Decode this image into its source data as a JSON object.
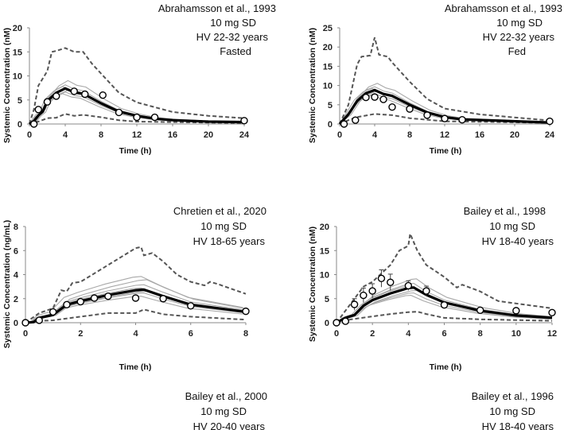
{
  "chart_data": [
    {
      "type": "line",
      "title_lines": [
        "Abrahamsson et al., 1993",
        "10 mg SD",
        "HV 22-32 years",
        "Fasted"
      ],
      "xlabel": "Time (h)",
      "ylabel": "Systemic Concentration (nM)",
      "xlim": [
        0,
        24
      ],
      "ylim": [
        0,
        20
      ],
      "xticks": [
        "0",
        "4",
        "8",
        "12",
        "16",
        "20",
        "24"
      ],
      "yticks": [
        "0",
        "5",
        "10",
        "15",
        "20"
      ],
      "observed": [
        [
          0.5,
          0
        ],
        [
          1,
          3
        ],
        [
          2,
          4.6
        ],
        [
          3,
          5.8
        ],
        [
          5,
          6.8
        ],
        [
          6.2,
          6.2
        ],
        [
          8.2,
          6
        ],
        [
          10,
          2.4
        ],
        [
          12,
          1.4
        ],
        [
          14,
          1.4
        ],
        [
          24,
          0.7
        ]
      ],
      "mean": [
        [
          0,
          0
        ],
        [
          0.5,
          0.6
        ],
        [
          1,
          1.8
        ],
        [
          1.5,
          2.6
        ],
        [
          2,
          4.8
        ],
        [
          3,
          6.5
        ],
        [
          4,
          7.4
        ],
        [
          5,
          6.6
        ],
        [
          6,
          6.3
        ],
        [
          8,
          4.3
        ],
        [
          10,
          2.6
        ],
        [
          12,
          1.7
        ],
        [
          14,
          1.1
        ],
        [
          16,
          0.8
        ],
        [
          20,
          0.5
        ],
        [
          24,
          0.4
        ]
      ],
      "upper_95": [
        [
          0,
          0
        ],
        [
          0.5,
          3
        ],
        [
          1,
          8
        ],
        [
          2,
          11
        ],
        [
          2.5,
          15
        ],
        [
          3,
          15.2
        ],
        [
          4,
          15.8
        ],
        [
          5,
          15
        ],
        [
          6,
          15
        ],
        [
          7,
          12.5
        ],
        [
          8,
          10.5
        ],
        [
          10,
          6.5
        ],
        [
          12,
          4.5
        ],
        [
          16,
          2.5
        ],
        [
          20,
          1.7
        ],
        [
          24,
          1.2
        ]
      ],
      "lower_5": [
        [
          0,
          0
        ],
        [
          1,
          0.5
        ],
        [
          2,
          1.2
        ],
        [
          3,
          1.3
        ],
        [
          4,
          2.1
        ],
        [
          5,
          1.7
        ],
        [
          6,
          1.9
        ],
        [
          8,
          1.4
        ],
        [
          10,
          0.8
        ],
        [
          12,
          0.5
        ],
        [
          24,
          0.2
        ]
      ],
      "trial_scale": [
        0.85,
        0.9,
        0.95,
        1.05,
        1.1,
        1.22
      ]
    },
    {
      "type": "line",
      "title_lines": [
        "Abrahamsson et al., 1993",
        "10 mg SD",
        "HV 22-32 years",
        "Fed"
      ],
      "xlabel": "Time (h)",
      "ylabel": "Systemic Concentration (nM)",
      "xlim": [
        0,
        24
      ],
      "ylim": [
        0,
        25
      ],
      "xticks": [
        "0",
        "4",
        "8",
        "12",
        "16",
        "20",
        "24"
      ],
      "yticks": [
        "0",
        "5",
        "10",
        "15",
        "20",
        "25"
      ],
      "observed": [
        [
          0.5,
          0
        ],
        [
          1.8,
          1
        ],
        [
          3,
          6.9
        ],
        [
          4,
          7
        ],
        [
          5,
          6.4
        ],
        [
          6,
          4.4
        ],
        [
          8,
          3.9
        ],
        [
          10,
          2.3
        ],
        [
          12,
          1.4
        ],
        [
          14,
          1.1
        ],
        [
          24,
          0.7
        ]
      ],
      "mean": [
        [
          0,
          0
        ],
        [
          1,
          2.5
        ],
        [
          2,
          6
        ],
        [
          3,
          8
        ],
        [
          4,
          8.8
        ],
        [
          5,
          7.8
        ],
        [
          6,
          7.3
        ],
        [
          8,
          5
        ],
        [
          10,
          3
        ],
        [
          12,
          1.8
        ],
        [
          14,
          1.2
        ],
        [
          24,
          0.4
        ]
      ],
      "upper_95": [
        [
          0,
          0
        ],
        [
          1,
          5
        ],
        [
          2,
          15.5
        ],
        [
          2.5,
          17.5
        ],
        [
          3.5,
          17.8
        ],
        [
          4,
          22.5
        ],
        [
          4.5,
          18
        ],
        [
          5.5,
          17.5
        ],
        [
          6,
          16
        ],
        [
          8,
          11
        ],
        [
          10,
          6.5
        ],
        [
          12,
          4
        ],
        [
          16,
          2.5
        ],
        [
          24,
          0.9
        ]
      ],
      "lower_5": [
        [
          0,
          0
        ],
        [
          1,
          1
        ],
        [
          2,
          1.8
        ],
        [
          4,
          2.6
        ],
        [
          6,
          2.3
        ],
        [
          8,
          1.5
        ],
        [
          12,
          0.7
        ],
        [
          24,
          0.3
        ]
      ],
      "trial_scale": [
        0.85,
        0.9,
        0.97,
        1.05,
        1.1,
        1.2
      ]
    },
    {
      "type": "line",
      "title_lines": [
        "Chretien et al., 2020",
        "10 mg SD",
        "HV 18-65 years"
      ],
      "xlabel": "Time (h)",
      "ylabel": "Systemic Concentration (ng/mL)",
      "xlim": [
        0,
        8
      ],
      "ylim": [
        0,
        8
      ],
      "xticks": [
        "0",
        "2",
        "4",
        "6",
        "8"
      ],
      "yticks": [
        "0",
        "2",
        "4",
        "6",
        "8"
      ],
      "observed": [
        [
          0,
          0
        ],
        [
          0.5,
          0.2
        ],
        [
          1,
          0.9
        ],
        [
          1.5,
          1.5
        ],
        [
          2,
          1.75
        ],
        [
          2.5,
          2.05
        ],
        [
          3,
          2.2
        ],
        [
          4,
          2.05
        ],
        [
          5,
          2.0
        ],
        [
          6,
          1.4
        ],
        [
          8,
          0.95
        ]
      ],
      "mean": [
        [
          0,
          0
        ],
        [
          0.3,
          0.05
        ],
        [
          0.5,
          0.4
        ],
        [
          1,
          0.65
        ],
        [
          1.5,
          1.5
        ],
        [
          2,
          1.8
        ],
        [
          3,
          2.3
        ],
        [
          4,
          2.7
        ],
        [
          4.3,
          2.75
        ],
        [
          5,
          2.2
        ],
        [
          6,
          1.5
        ],
        [
          8,
          0.9
        ]
      ],
      "upper_95": [
        [
          0,
          0
        ],
        [
          0.5,
          0.8
        ],
        [
          1,
          1.2
        ],
        [
          1.3,
          2.7
        ],
        [
          1.5,
          2.6
        ],
        [
          1.7,
          3.3
        ],
        [
          2,
          3.4
        ],
        [
          3,
          4.8
        ],
        [
          3.5,
          5.5
        ],
        [
          4,
          6.2
        ],
        [
          4.2,
          6.3
        ],
        [
          4.3,
          5.6
        ],
        [
          4.6,
          5.8
        ],
        [
          5,
          5.1
        ],
        [
          5.5,
          4.0
        ],
        [
          6,
          3.4
        ],
        [
          6.5,
          3.1
        ],
        [
          6.7,
          3.4
        ],
        [
          7,
          3.2
        ],
        [
          8,
          2.4
        ]
      ],
      "lower_5": [
        [
          0,
          0
        ],
        [
          0.5,
          0.15
        ],
        [
          1,
          0.2
        ],
        [
          2,
          0.5
        ],
        [
          3,
          0.8
        ],
        [
          4,
          0.8
        ],
        [
          4.3,
          1.1
        ],
        [
          5,
          0.7
        ],
        [
          6,
          0.5
        ],
        [
          8,
          0.25
        ]
      ],
      "trial_scale": [
        0.8,
        0.9,
        0.95,
        1.05,
        1.15,
        1.3,
        1.4
      ]
    },
    {
      "type": "line",
      "title_lines": [
        "Bailey et al., 1998",
        "10 mg SD",
        "HV 18-40 years"
      ],
      "xlabel": "Time (h)",
      "ylabel": "Systemic Concentration (nM)",
      "xlim": [
        0,
        12
      ],
      "ylim": [
        0,
        20
      ],
      "xticks": [
        "0",
        "2",
        "4",
        "6",
        "8",
        "10",
        "12"
      ],
      "yticks": [
        "0",
        "5",
        "10",
        "15",
        "20"
      ],
      "observed": [
        [
          0,
          0
        ],
        [
          0.5,
          0.3
        ],
        [
          1,
          3.8
        ],
        [
          1.5,
          5.7
        ],
        [
          2,
          6.6
        ],
        [
          2.5,
          9.2
        ],
        [
          3,
          8.4
        ],
        [
          4,
          7.7
        ],
        [
          5,
          6.6
        ],
        [
          6,
          3.7
        ],
        [
          8,
          2.6
        ],
        [
          10,
          2.5
        ],
        [
          12,
          2.1
        ]
      ],
      "observed_sd": [
        0,
        0,
        1.2,
        1.5,
        1.5,
        1.8,
        1.7,
        1.0,
        1.0,
        0.5,
        0,
        0,
        0
      ],
      "mean": [
        [
          0,
          0
        ],
        [
          0.5,
          1
        ],
        [
          1,
          1.6
        ],
        [
          1.5,
          3.5
        ],
        [
          2,
          4.7
        ],
        [
          3,
          6.1
        ],
        [
          4,
          7.2
        ],
        [
          4.3,
          7.3
        ],
        [
          5,
          5.8
        ],
        [
          6,
          4.2
        ],
        [
          8,
          2.5
        ],
        [
          10,
          1.5
        ],
        [
          12,
          1.0
        ]
      ],
      "upper_95": [
        [
          0,
          0
        ],
        [
          0.5,
          2.5
        ],
        [
          1,
          5
        ],
        [
          1.5,
          7.5
        ],
        [
          2,
          8.5
        ],
        [
          3,
          12
        ],
        [
          3.5,
          15
        ],
        [
          4,
          16
        ],
        [
          4.1,
          18.5
        ],
        [
          4.5,
          15
        ],
        [
          5,
          12
        ],
        [
          6,
          9.5
        ],
        [
          6.7,
          7.3
        ],
        [
          7,
          7.9
        ],
        [
          8,
          6.5
        ],
        [
          9,
          4.5
        ],
        [
          12,
          3
        ]
      ],
      "lower_5": [
        [
          0,
          0
        ],
        [
          0.5,
          0.5
        ],
        [
          1,
          0.8
        ],
        [
          2,
          1.3
        ],
        [
          3,
          1.8
        ],
        [
          4,
          2.2
        ],
        [
          4.5,
          2.3
        ],
        [
          5,
          1.8
        ],
        [
          6,
          1.0
        ],
        [
          8,
          0.7
        ],
        [
          12,
          0.4
        ]
      ],
      "trial_scale": [
        0.78,
        0.85,
        0.92,
        1.05,
        1.12,
        1.25
      ]
    }
  ],
  "captions": [
    {
      "lines": [
        "Bailey et al., 2000",
        "10 mg SD",
        "HV 20-40 years"
      ]
    },
    {
      "lines": [
        "Bailey et al., 1996",
        "10 mg SD",
        "HV 18-40 years"
      ]
    }
  ]
}
